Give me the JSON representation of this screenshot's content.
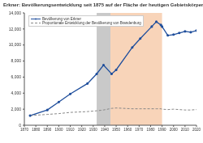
{
  "chart_data": {
    "type": "line",
    "title": "Erkner: Bevölkerungsentwicklung seit 1875 auf der Fläche der heutigen Gebietskörperschaft",
    "x": [
      1875,
      1890,
      1900,
      1910,
      1925,
      1933,
      1939,
      1946,
      1950,
      1964,
      1971,
      1981,
      1985,
      1989,
      1990,
      1995,
      2000,
      2005,
      2010,
      2015,
      2020
    ],
    "series": [
      {
        "name": "Bevölkerung von Erkner",
        "color": "#1f4e9c",
        "marker": "circle",
        "line_style": "solid",
        "values": [
          1200,
          1900,
          2900,
          3900,
          5200,
          6400,
          7500,
          6400,
          6900,
          9700,
          10800,
          12300,
          12900,
          12500,
          12300,
          11200,
          11300,
          11500,
          11700,
          11600,
          11800
        ]
      },
      {
        "name": "Proportionale Entwicklung der Bevölkerung von Brandenburg",
        "color": "#888888",
        "marker": "none",
        "line_style": "dashed",
        "values": [
          1200,
          1350,
          1450,
          1600,
          1700,
          1800,
          1900,
          2100,
          2150,
          2050,
          2050,
          2050,
          2050,
          2050,
          2000,
          1950,
          2000,
          1950,
          1900,
          1900,
          1950
        ]
      }
    ],
    "periods": [
      {
        "x": [
          1933,
          1945
        ],
        "color": "#bbbbbb"
      },
      {
        "x": [
          1945,
          1990
        ],
        "color": "#f6c9a8"
      }
    ],
    "xlim": [
      1870,
      2020
    ],
    "xticks": [
      1870,
      1880,
      1890,
      1900,
      1910,
      1920,
      1930,
      1940,
      1950,
      1960,
      1970,
      1980,
      1990,
      2000,
      2010,
      2020
    ],
    "ylim": [
      0,
      14000
    ],
    "yticks": [
      0,
      {
        "value": 2000,
        "label": "2,000"
      },
      {
        "value": 4000,
        "label": "4,000"
      },
      {
        "value": 6000,
        "label": "6,000"
      },
      {
        "value": 8000,
        "label": "8,000"
      },
      {
        "value": 10000,
        "label": "10,000"
      },
      {
        "value": 12000,
        "label": "12,000"
      },
      {
        "value": 14000,
        "label": "14,000"
      }
    ],
    "grid": false,
    "legend": "upper left"
  }
}
